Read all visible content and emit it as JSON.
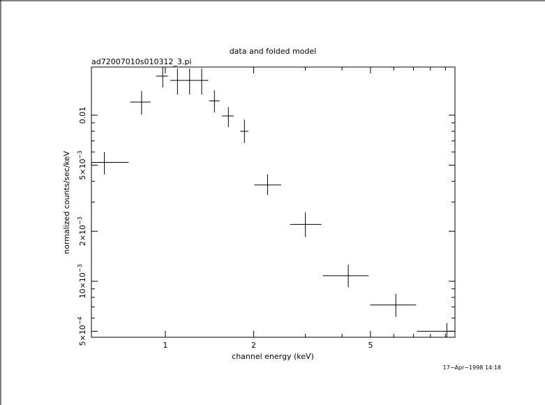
{
  "chart_data": {
    "type": "scatter",
    "title": "data and folded model",
    "subtitle": "ad72007010s010312_3.pi",
    "xlabel": "channel energy (keV)",
    "ylabel": "normalized counts/sec/keV",
    "x_scale": "log",
    "y_scale": "log",
    "xlim": [
      0.56,
      9.7
    ],
    "ylim": [
      0.00046,
      0.0195
    ],
    "grid": false,
    "x_ticks": [
      {
        "value": 1,
        "label": "1"
      },
      {
        "value": 2,
        "label": "2"
      },
      {
        "value": 5,
        "label": "5"
      }
    ],
    "y_ticks": [
      {
        "value": 0.0005,
        "mantissa": "5",
        "exp": "−4"
      },
      {
        "value": 0.001,
        "mantissa": "10",
        "exp": "−3"
      },
      {
        "value": 0.002,
        "mantissa": "2",
        "exp": "−3"
      },
      {
        "value": 0.005,
        "mantissa": "5",
        "exp": "−3"
      },
      {
        "value": 0.01,
        "mantissa": "0.01",
        "exp": ""
      }
    ],
    "points": [
      {
        "x": 0.62,
        "x_lo": 0.56,
        "x_hi": 0.75,
        "y": 0.0052,
        "y_lo": 0.0044,
        "y_hi": 0.006
      },
      {
        "x": 0.83,
        "x_lo": 0.76,
        "x_hi": 0.89,
        "y": 0.012,
        "y_lo": 0.0101,
        "y_hi": 0.014
      },
      {
        "x": 0.98,
        "x_lo": 0.93,
        "x_hi": 1.02,
        "y": 0.0172,
        "y_lo": 0.0147,
        "y_hi": 0.0195
      },
      {
        "x": 1.1,
        "x_lo": 1.04,
        "x_hi": 1.16,
        "y": 0.0162,
        "y_lo": 0.0133,
        "y_hi": 0.0191
      },
      {
        "x": 1.21,
        "x_lo": 1.16,
        "x_hi": 1.27,
        "y": 0.0162,
        "y_lo": 0.0133,
        "y_hi": 0.0191
      },
      {
        "x": 1.33,
        "x_lo": 1.27,
        "x_hi": 1.4,
        "y": 0.0162,
        "y_lo": 0.0133,
        "y_hi": 0.0191
      },
      {
        "x": 1.47,
        "x_lo": 1.41,
        "x_hi": 1.53,
        "y": 0.0122,
        "y_lo": 0.0104,
        "y_hi": 0.0141
      },
      {
        "x": 1.64,
        "x_lo": 1.56,
        "x_hi": 1.71,
        "y": 0.0099,
        "y_lo": 0.0085,
        "y_hi": 0.0112
      },
      {
        "x": 1.86,
        "x_lo": 1.8,
        "x_hi": 1.92,
        "y": 0.008,
        "y_lo": 0.0068,
        "y_hi": 0.0094
      },
      {
        "x": 2.23,
        "x_lo": 2.01,
        "x_hi": 2.48,
        "y": 0.0038,
        "y_lo": 0.0033,
        "y_hi": 0.0044
      },
      {
        "x": 3.0,
        "x_lo": 2.66,
        "x_hi": 3.4,
        "y": 0.0022,
        "y_lo": 0.00185,
        "y_hi": 0.0026
      },
      {
        "x": 4.2,
        "x_lo": 3.44,
        "x_hi": 4.93,
        "y": 0.00108,
        "y_lo": 0.00092,
        "y_hi": 0.00126
      },
      {
        "x": 6.1,
        "x_lo": 4.99,
        "x_hi": 7.15,
        "y": 0.00072,
        "y_lo": 0.00061,
        "y_hi": 0.00084
      },
      {
        "x": 9.1,
        "x_lo": 7.2,
        "x_hi": 9.7,
        "y": 0.0005,
        "y_lo": 0.00044,
        "y_hi": 0.00056
      }
    ]
  },
  "timestamp": "17−Apr−1998 14:18"
}
